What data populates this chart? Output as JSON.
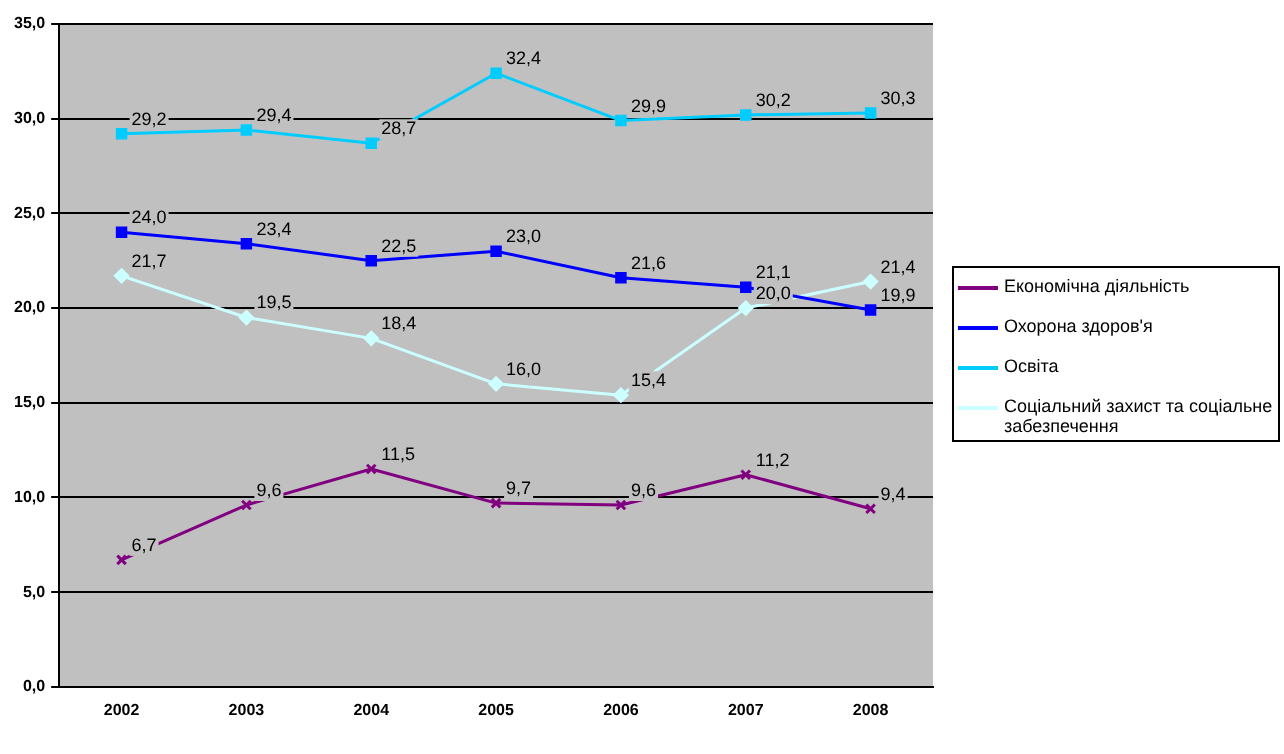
{
  "chart_data": {
    "type": "line",
    "categories": [
      "2002",
      "2003",
      "2004",
      "2005",
      "2006",
      "2007",
      "2008"
    ],
    "ylim": [
      0,
      35
    ],
    "yticks": [
      {
        "value": 0,
        "label": "0,0"
      },
      {
        "value": 5,
        "label": "5,0"
      },
      {
        "value": 10,
        "label": "10,0"
      },
      {
        "value": 15,
        "label": "15,0"
      },
      {
        "value": 20,
        "label": "20,0"
      },
      {
        "value": 25,
        "label": "25,0"
      },
      {
        "value": 30,
        "label": "30,0"
      },
      {
        "value": 35,
        "label": "35,0"
      }
    ],
    "grid": "y",
    "legend": "right",
    "series": [
      {
        "name": "Економічна діяльність",
        "color": "#800080",
        "marker": "cross",
        "values": [
          6.7,
          9.6,
          11.5,
          9.7,
          9.6,
          11.2,
          9.4
        ],
        "value_labels": [
          "6,7",
          "9,6",
          "11,5",
          "9,7",
          "9,6",
          "11,2",
          "9,4"
        ]
      },
      {
        "name": "Охорона здоров'я",
        "color": "#0000ff",
        "marker": "square",
        "values": [
          24.0,
          23.4,
          22.5,
          23.0,
          21.6,
          21.1,
          19.9
        ],
        "value_labels": [
          "24,0",
          "23,4",
          "22,5",
          "23,0",
          "21,6",
          "21,1",
          "19,9"
        ]
      },
      {
        "name": "Освіта",
        "color": "#00ccff",
        "marker": "square",
        "values": [
          29.2,
          29.4,
          28.7,
          32.4,
          29.9,
          30.2,
          30.3
        ],
        "value_labels": [
          "29,2",
          "29,4",
          "28,7",
          "32,4",
          "29,9",
          "30,2",
          "30,3"
        ]
      },
      {
        "name": "Соціальний захист та соціальне забезпечення",
        "color": "#ccffff",
        "marker": "diamond",
        "values": [
          21.7,
          19.5,
          18.4,
          16.0,
          15.4,
          20.0,
          21.4
        ],
        "value_labels": [
          "21,7",
          "19,5",
          "18,4",
          "16,0",
          "15,4",
          "20,0",
          "21,4"
        ]
      }
    ]
  }
}
